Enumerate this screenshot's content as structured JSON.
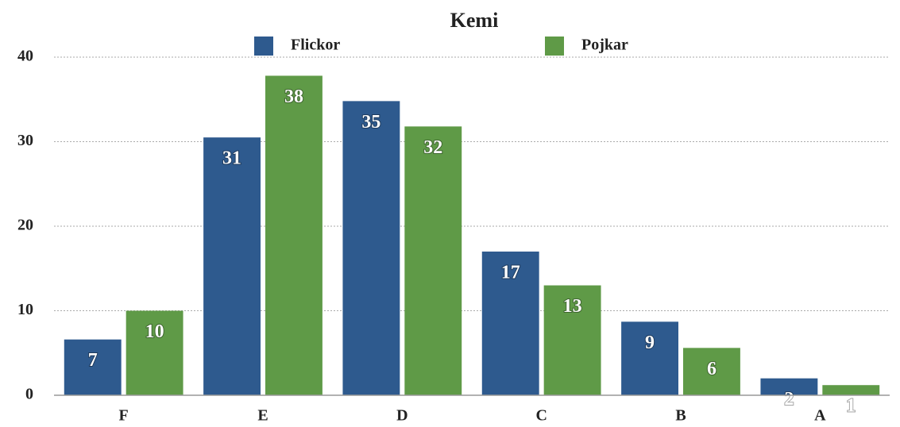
{
  "chart_data": {
    "type": "bar",
    "title": "Kemi",
    "categories": [
      "F",
      "E",
      "D",
      "C",
      "B",
      "A"
    ],
    "series": [
      {
        "name": "Flickor",
        "color": "#2e5a8e",
        "values": [
          6.6,
          30.5,
          34.8,
          17.0,
          8.7,
          2.0
        ],
        "value_labels": [
          "7",
          "31",
          "35",
          "17",
          "9",
          "2"
        ]
      },
      {
        "name": "Pojkar",
        "color": "#5f9a47",
        "values": [
          10.0,
          37.8,
          31.8,
          13.0,
          5.6,
          1.2
        ],
        "value_labels": [
          "10",
          "38",
          "32",
          "13",
          "6",
          "1"
        ]
      }
    ],
    "ylim": [
      0,
      40
    ],
    "yticks": [
      0,
      10,
      20,
      30,
      40
    ],
    "grid": true,
    "legend": "top"
  }
}
